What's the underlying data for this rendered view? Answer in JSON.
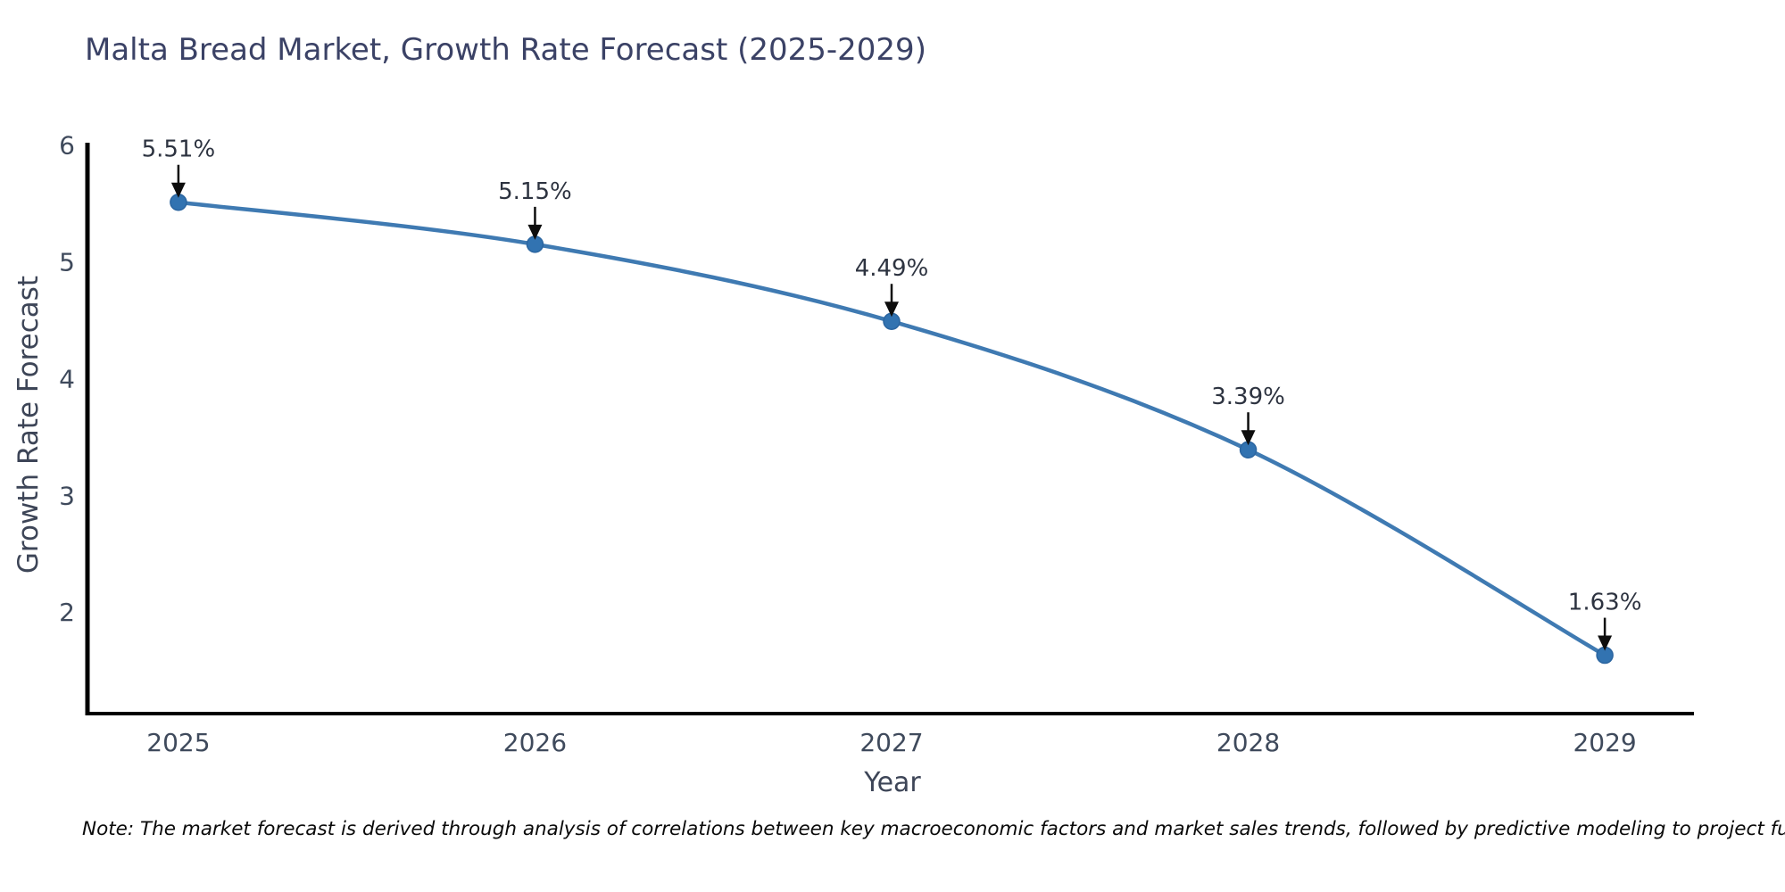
{
  "figure": {
    "title": "Malta Bread Market, Growth Rate Forecast (2025-2029)",
    "note": "Note: The market forecast is derived through analysis of correlations between key macroeconomic factors and market sales trends, followed by predictive modeling to project future sales."
  },
  "chart_data": {
    "type": "line",
    "title": "Malta Bread Market, Growth Rate Forecast (2025-2029)",
    "xlabel": "Year",
    "ylabel": "Growth Rate Forecast",
    "x": [
      2025,
      2026,
      2027,
      2028,
      2029
    ],
    "y": [
      5.51,
      5.15,
      4.49,
      3.39,
      1.63
    ],
    "point_labels": [
      "5.51%",
      "5.15%",
      "4.49%",
      "3.39%",
      "1.63%"
    ],
    "xticks": [
      2025,
      2026,
      2027,
      2028,
      2029
    ],
    "yticks": [
      2,
      3,
      4,
      5,
      6
    ],
    "xlim": [
      2024.745,
      2029.25
    ],
    "ylim": [
      1.13,
      6.02
    ],
    "grid": false,
    "legend": null,
    "annotation_note": "Each point annotated with its percent value and a downward arrow",
    "colors": {
      "line": "#3f7ab2",
      "marker_fill": "#3273b1",
      "marker_edge": "#2b65a0",
      "arrow": "#0d0d0d",
      "axis": "#000000",
      "title_text": "#3b4266",
      "tick_text": "#3f4a5c",
      "annotation_text": "#2d3340"
    }
  }
}
